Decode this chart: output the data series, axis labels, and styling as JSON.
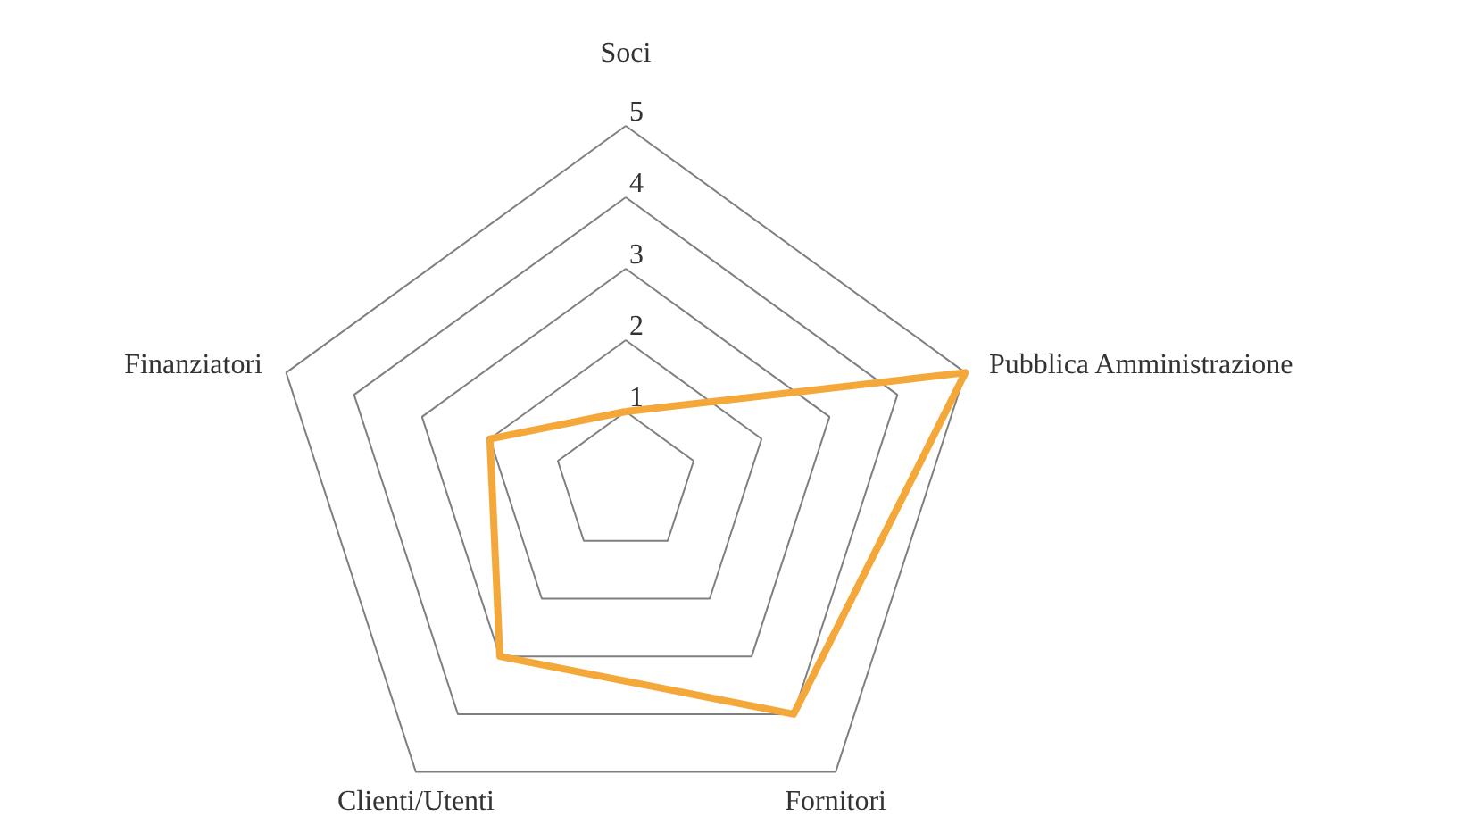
{
  "chart_data": {
    "type": "radar",
    "categories": [
      "Soci",
      "Pubblica Amministrazione",
      "Fornitori",
      "Clienti/Utenti",
      "Finanziatori"
    ],
    "series": [
      {
        "color": "#f5a83a",
        "values": [
          1,
          5,
          4,
          3,
          2
        ]
      }
    ],
    "ylim": [
      0,
      5
    ],
    "yticks": [
      1,
      2,
      3,
      4,
      5
    ],
    "grid": true
  }
}
